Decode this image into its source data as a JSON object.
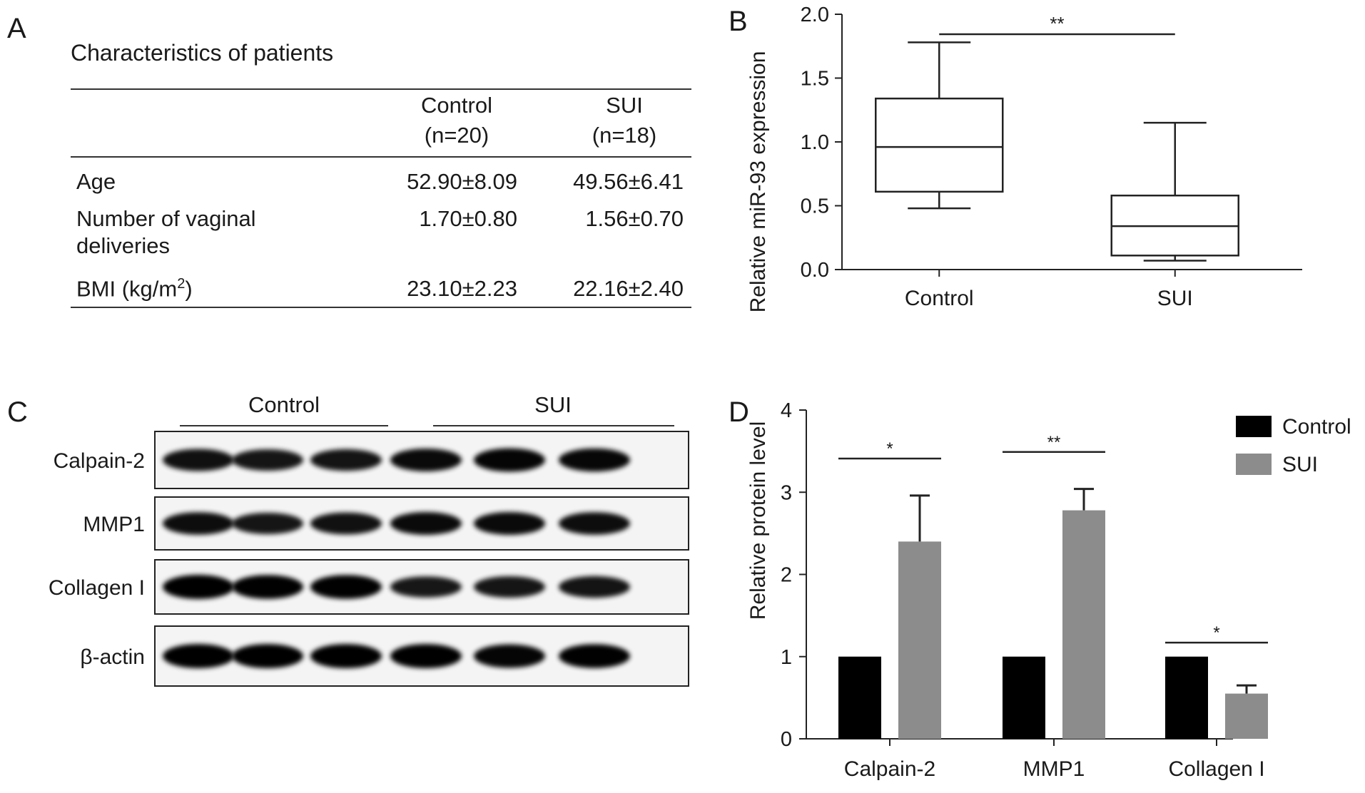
{
  "panels": {
    "a": "A",
    "b": "B",
    "c": "C",
    "d": "D"
  },
  "table": {
    "title": "Characteristics of patients",
    "header": {
      "control": "Control",
      "control_n": "(n=20)",
      "sui": "SUI",
      "sui_n": "(n=18)"
    },
    "rows": [
      {
        "label": "Age",
        "control": "52.90±8.09",
        "sui": "49.56±6.41"
      },
      {
        "label": "Number of vaginal",
        "label2": "deliveries",
        "control": "1.70±0.80",
        "sui": "1.56±0.70"
      },
      {
        "label": "BMI (kg/m",
        "label_sup": "2",
        "label_after": ")",
        "control": "23.10±2.23",
        "sui": "22.16±2.40"
      }
    ]
  },
  "chart_data": [
    {
      "type": "box",
      "ylabel": "Relative miR-93 expression",
      "ylim": [
        0,
        2.0
      ],
      "yticks": [
        "0.0",
        "0.5",
        "1.0",
        "1.5",
        "2.0"
      ],
      "categories": [
        "Control",
        "SUI"
      ],
      "boxes": [
        {
          "min": 0.48,
          "q1": 0.61,
          "median": 0.96,
          "q3": 1.34,
          "max": 1.78
        },
        {
          "min": 0.07,
          "q1": 0.11,
          "median": 0.34,
          "q3": 0.58,
          "max": 1.15
        }
      ],
      "significance": [
        {
          "between": [
            "Control",
            "SUI"
          ],
          "label": "**"
        }
      ]
    },
    {
      "type": "bar",
      "ylabel": "Relative protein level",
      "ylim": [
        0,
        4
      ],
      "yticks": [
        "0",
        "1",
        "2",
        "3",
        "4"
      ],
      "categories": [
        "Calpain-2",
        "MMP1",
        "Collagen I"
      ],
      "series": [
        {
          "name": "Control",
          "color": "#000000",
          "values": [
            1.0,
            1.0,
            1.0
          ],
          "errors": [
            0,
            0,
            0
          ]
        },
        {
          "name": "SUI",
          "color": "#8c8c8c",
          "values": [
            2.4,
            2.78,
            0.55
          ],
          "errors": [
            0.56,
            0.26,
            0.1
          ]
        }
      ],
      "significance": [
        "*",
        "**",
        "*"
      ],
      "legend_position": "top-right"
    }
  ],
  "blot": {
    "groups": [
      "Control",
      "SUI"
    ],
    "rows": [
      {
        "label": "Calpain-2",
        "intensity": [
          0.85,
          0.8,
          0.82,
          0.9,
          0.95,
          0.93
        ]
      },
      {
        "label": "MMP1",
        "intensity": [
          0.88,
          0.8,
          0.84,
          0.9,
          0.9,
          0.88
        ]
      },
      {
        "label": "Collagen I",
        "intensity": [
          1.0,
          0.98,
          0.98,
          0.78,
          0.8,
          0.82
        ]
      },
      {
        "label": "β-actin",
        "intensity": [
          1.0,
          1.0,
          1.0,
          1.0,
          0.95,
          0.98
        ]
      }
    ]
  }
}
